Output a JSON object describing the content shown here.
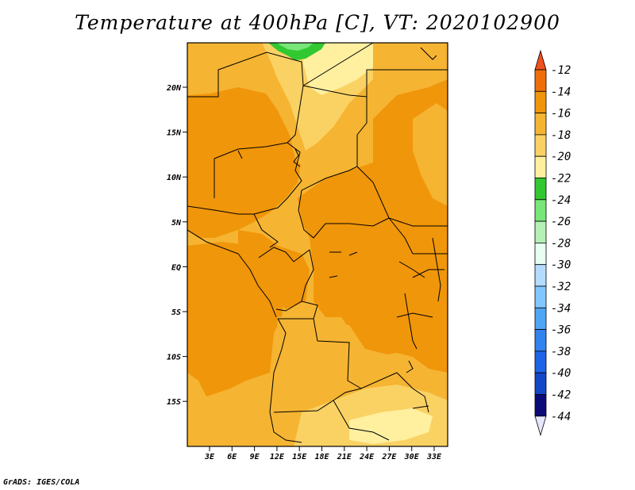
{
  "title": "Temperature at 400hPa [C], VT: 2020102900",
  "footer": "GrADS: IGES/COLA",
  "map": {
    "lat_labels": [
      "20N",
      "15N",
      "10N",
      "5N",
      "EQ",
      "5S",
      "10S",
      "15S"
    ],
    "lon_labels": [
      "3E",
      "6E",
      "9E",
      "12E",
      "15E",
      "18E",
      "21E",
      "24E",
      "27E",
      "30E",
      "33E"
    ]
  },
  "colorbar": {
    "labels": [
      "-12",
      "-14",
      "-16",
      "-18",
      "-20",
      "-22",
      "-24",
      "-26",
      "-28",
      "-30",
      "-32",
      "-34",
      "-36",
      "-38",
      "-40",
      "-42",
      "-44"
    ],
    "colors": [
      "#f0501e",
      "#f06e0a",
      "#f0960a",
      "#f5b432",
      "#fad264",
      "#fff0a0",
      "#32c832",
      "#78e678",
      "#b4f0b4",
      "#e6fff0",
      "#b4dcff",
      "#82c8ff",
      "#50a5f5",
      "#3282f0",
      "#1e64e6",
      "#1446c8",
      "#0a0a78",
      "#e6e6ff"
    ]
  }
}
